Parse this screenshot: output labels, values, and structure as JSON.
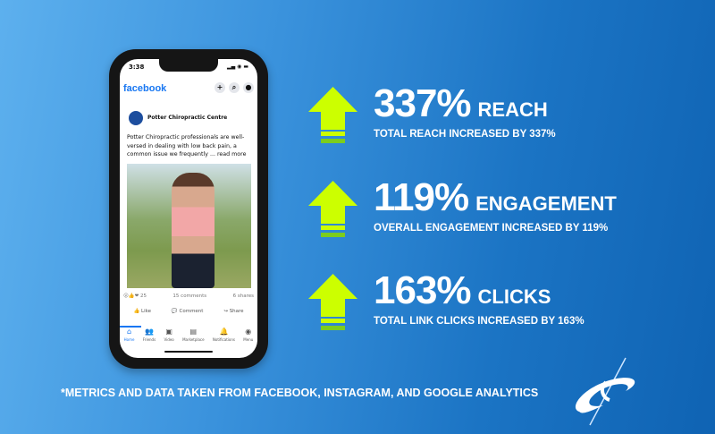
{
  "phone": {
    "time": "3:38",
    "status_icons": "signal wifi battery",
    "app_name": "facebook",
    "header_icons": [
      "plus-icon",
      "search-icon",
      "messenger-icon"
    ],
    "post": {
      "page_name": "Potter Chiropractic Centre",
      "text": "Potter Chiropractic professionals are well-versed in dealing with low back pain, a common issue we frequently ... read more",
      "reaction_count": "25",
      "comments": "15 comments",
      "shares": "6 shares"
    },
    "actions": [
      "Like",
      "Comment",
      "Share"
    ],
    "tabs": [
      "Home",
      "Friends",
      "Video",
      "Marketplace",
      "Notifications",
      "Menu"
    ]
  },
  "metrics": [
    {
      "value": "337%",
      "label": "REACH",
      "description": "TOTAL REACH INCREASED BY 337%"
    },
    {
      "value": "119%",
      "label": "ENGAGEMENT",
      "description": "OVERALL ENGAGEMENT INCREASED BY 119%"
    },
    {
      "value": "163%",
      "label": "CLICKS",
      "description": "TOTAL LINK CLICKS INCREASED BY 163%"
    }
  ],
  "footnote": "*METRICS AND DATA TAKEN FROM FACEBOOK, INSTAGRAM, AND GOOGLE ANALYTICS",
  "colors": {
    "arrow": "#ccff00",
    "arrow_base": "#7ccd1e",
    "facebook": "#1877f2"
  }
}
